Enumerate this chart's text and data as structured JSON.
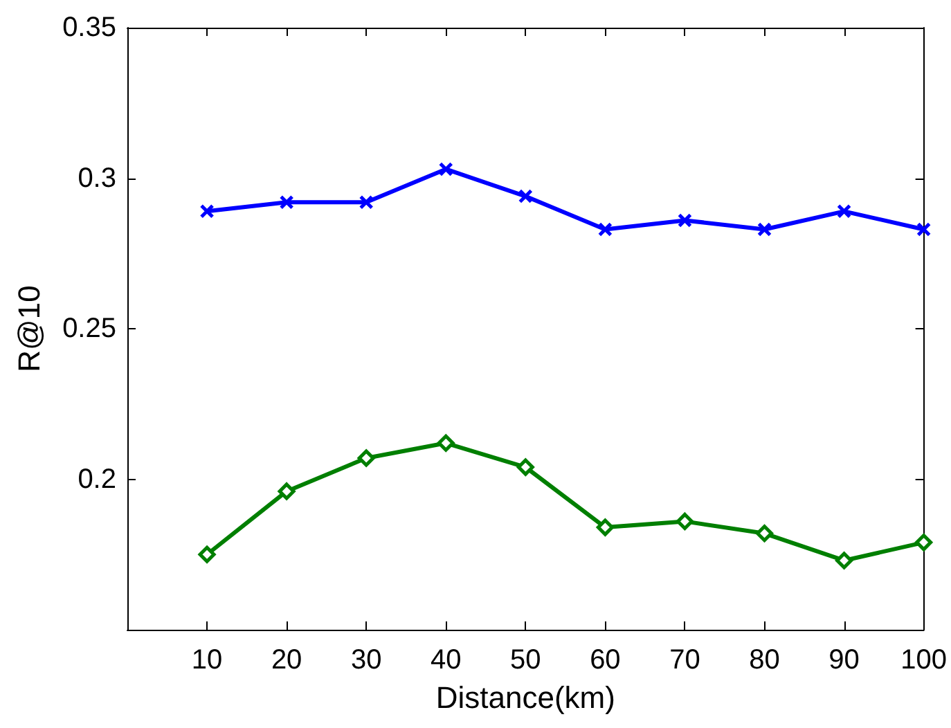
{
  "chart_data": {
    "type": "line",
    "xlabel": "Distance(km)",
    "ylabel": "R@10",
    "x": [
      10,
      20,
      30,
      40,
      50,
      60,
      70,
      80,
      90,
      100
    ],
    "series": [
      {
        "color": "#0000ff",
        "marker": "cross",
        "values": [
          0.289,
          0.292,
          0.292,
          0.303,
          0.294,
          0.283,
          0.286,
          0.283,
          0.289,
          0.283
        ]
      },
      {
        "color": "#007f00",
        "marker": "diamond",
        "values": [
          0.175,
          0.196,
          0.207,
          0.212,
          0.204,
          0.184,
          0.186,
          0.182,
          0.173,
          0.179
        ]
      }
    ],
    "xlim": [
      0,
      100
    ],
    "xticks": [
      10,
      20,
      30,
      40,
      50,
      60,
      70,
      80,
      90,
      100
    ],
    "ylim": [
      0.15,
      0.35
    ],
    "yticks": [
      0.2,
      0.25,
      0.3,
      0.35
    ],
    "grid": false,
    "line_style": "solid"
  }
}
